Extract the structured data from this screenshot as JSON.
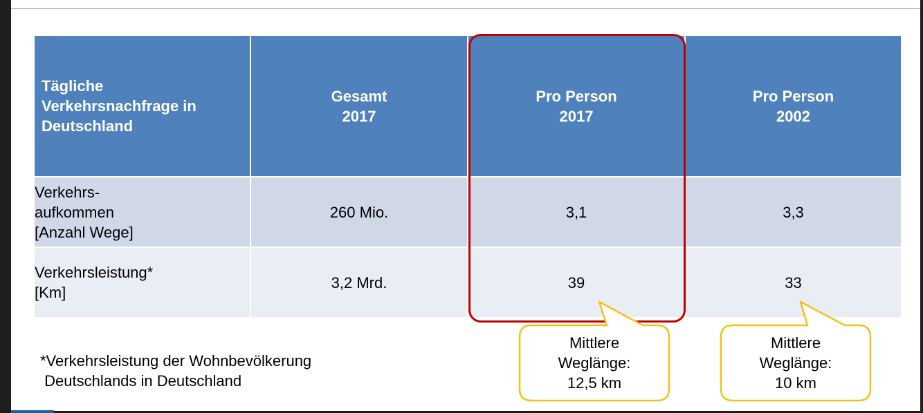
{
  "table": {
    "header": {
      "col1": "Tägliche\nVerkehrsnachfrage in\nDeutschland",
      "col2": "Gesamt\n2017",
      "col3": "Pro Person\n2017",
      "col4": "Pro Person\n2002"
    },
    "rows": [
      {
        "label": "Verkehrs-\naufkommen\n[Anzahl Wege]",
        "gesamt_2017": "260 Mio.",
        "pro_person_2017": "3,1",
        "pro_person_2002": "3,3"
      },
      {
        "label": "Verkehrsleistung*\n[Km]",
        "gesamt_2017": "3,2 Mrd.",
        "pro_person_2017": "39",
        "pro_person_2002": "33"
      }
    ]
  },
  "footnote": "*Verkehrsleistung der Wohnbevölkerung\n Deutschlands in Deutschland",
  "callouts": [
    {
      "text": "Mittlere\nWeglänge:\n12,5 km"
    },
    {
      "text": "Mittlere\nWeglänge:\n10 km"
    }
  ],
  "colors": {
    "header": "#4f81bd",
    "row_dark": "#d0d8e8",
    "row_light": "#e9edf4",
    "highlight": "#c00000",
    "callout_border": "#f2c21b"
  }
}
